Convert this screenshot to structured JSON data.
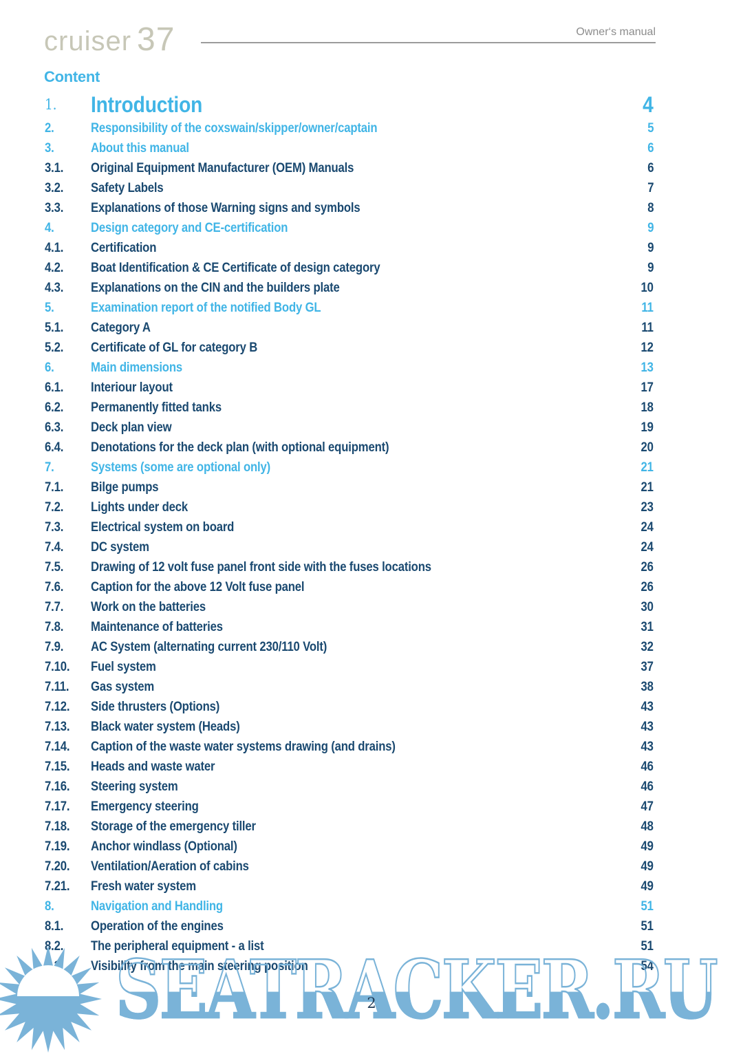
{
  "header": {
    "logo_text": "cruiser",
    "logo_number": "37",
    "manual_label": "Owner‘s manual"
  },
  "content_title": "Content",
  "toc": {
    "entries": [
      {
        "num": "1.",
        "title": "Introduction",
        "page": "4",
        "style": "chapter-large"
      },
      {
        "num": "2.",
        "title": "Responsibility of the coxswain/skipper/owner/captain",
        "page": "5",
        "style": "chapter"
      },
      {
        "num": "3.",
        "title": "About this manual",
        "page": "6",
        "style": "chapter"
      },
      {
        "num": "3.1.",
        "title": "Original Equipment Manufacturer (OEM) Manuals",
        "page": "6",
        "style": "sub"
      },
      {
        "num": "3.2.",
        "title": "Safety Labels",
        "page": "7",
        "style": "sub"
      },
      {
        "num": "3.3.",
        "title": "Explanations of those Warning signs and symbols",
        "page": "8",
        "style": "sub"
      },
      {
        "num": "4.",
        "title": "Design category and CE-certification",
        "page": "9",
        "style": "chapter"
      },
      {
        "num": "4.1.",
        "title": "Certification",
        "page": "9",
        "style": "sub"
      },
      {
        "num": "4.2.",
        "title": "Boat Identification & CE Certificate of design category",
        "page": "9",
        "style": "sub"
      },
      {
        "num": "4.3.",
        "title": "Explanations on the CIN and the builders plate",
        "page": "10",
        "style": "sub"
      },
      {
        "num": "5.",
        "title": "Examination report of the notified Body GL",
        "page": "11",
        "style": "chapter"
      },
      {
        "num": "5.1.",
        "title": "Category A",
        "page": "11",
        "style": "sub"
      },
      {
        "num": "5.2.",
        "title": "Certificate of GL for category B",
        "page": "12",
        "style": "sub"
      },
      {
        "num": "6.",
        "title": "Main dimensions",
        "page": "13",
        "style": "chapter"
      },
      {
        "num": "6.1.",
        "title": "Interiour layout",
        "page": "17",
        "style": "sub"
      },
      {
        "num": "6.2.",
        "title": "Permanently fitted tanks",
        "page": "18",
        "style": "sub"
      },
      {
        "num": "6.3.",
        "title": "Deck plan view",
        "page": "19",
        "style": "sub"
      },
      {
        "num": "6.4.",
        "title": "Denotations for the deck plan (with optional equipment)",
        "page": "20",
        "style": "sub"
      },
      {
        "num": "7.",
        "title": "Systems (some are optional only)",
        "page": "21",
        "style": "chapter"
      },
      {
        "num": "7.1.",
        "title": "Bilge pumps",
        "page": "21",
        "style": "sub"
      },
      {
        "num": "7.2.",
        "title": "Lights under deck",
        "page": "23",
        "style": "sub"
      },
      {
        "num": "7.3.",
        "title": "Electrical system on board",
        "page": "24",
        "style": "sub"
      },
      {
        "num": "7.4.",
        "title": "DC system",
        "page": "24",
        "style": "sub"
      },
      {
        "num": "7.5.",
        "title": "Drawing of 12 volt fuse panel front side with the fuses locations",
        "page": "26",
        "style": "sub"
      },
      {
        "num": "7.6.",
        "title": "Caption for the above 12 Volt fuse panel",
        "page": "26",
        "style": "sub"
      },
      {
        "num": "7.7.",
        "title": "Work on the batteries",
        "page": "30",
        "style": "sub"
      },
      {
        "num": "7.8.",
        "title": "Maintenance of batteries",
        "page": "31",
        "style": "sub"
      },
      {
        "num": "7.9.",
        "title": "AC System (alternating current 230/110 Volt)",
        "page": "32",
        "style": "sub"
      },
      {
        "num": "7.10.",
        "title": "Fuel system",
        "page": "37",
        "style": "sub"
      },
      {
        "num": "7.11.",
        "title": "Gas system",
        "page": "38",
        "style": "sub"
      },
      {
        "num": "7.12.",
        "title": "Side thrusters (Options)",
        "page": "43",
        "style": "sub"
      },
      {
        "num": "7.13.",
        "title": "Black water system (Heads)",
        "page": "43",
        "style": "sub"
      },
      {
        "num": "7.14.",
        "title": "Caption of the waste water systems drawing (and drains)",
        "page": "43",
        "style": "sub"
      },
      {
        "num": "7.15.",
        "title": "Heads and waste water",
        "page": "46",
        "style": "sub"
      },
      {
        "num": "7.16.",
        "title": "Steering system",
        "page": "46",
        "style": "sub"
      },
      {
        "num": "7.17.",
        "title": "Emergency steering",
        "page": "47",
        "style": "sub"
      },
      {
        "num": "7.18.",
        "title": "Storage of the emergency tiller",
        "page": "48",
        "style": "sub"
      },
      {
        "num": "7.19.",
        "title": "Anchor windlass (Optional)",
        "page": "49",
        "style": "sub"
      },
      {
        "num": "7.20.",
        "title": "Ventilation/Aeration of cabins",
        "page": "49",
        "style": "sub"
      },
      {
        "num": "7.21.",
        "title": "Fresh water system",
        "page": "49",
        "style": "sub"
      },
      {
        "num": "8.",
        "title": "Navigation and Handling",
        "page": "51",
        "style": "chapter"
      },
      {
        "num": "8.1.",
        "title": "Operation of the engines",
        "page": "51",
        "style": "sub"
      },
      {
        "num": "8.2.",
        "title": "The peripheral equipment - a list",
        "page": "51",
        "style": "sub"
      },
      {
        "num": "8.3.",
        "title": "Visibility from the main steering position",
        "page": "54",
        "style": "sub"
      }
    ]
  },
  "footer": {
    "page_number": "2"
  },
  "watermark": {
    "text": "SEATRACKER.RU",
    "icon": "sun-logo"
  },
  "colors": {
    "accent_blue": "#41b5e6",
    "navy": "#1a4970",
    "watermark_blue": "#7ab3d8",
    "logo_gray": "#c7c7b7",
    "rule_gray": "#9b9b9b",
    "header_gray": "#8c8c8c"
  }
}
